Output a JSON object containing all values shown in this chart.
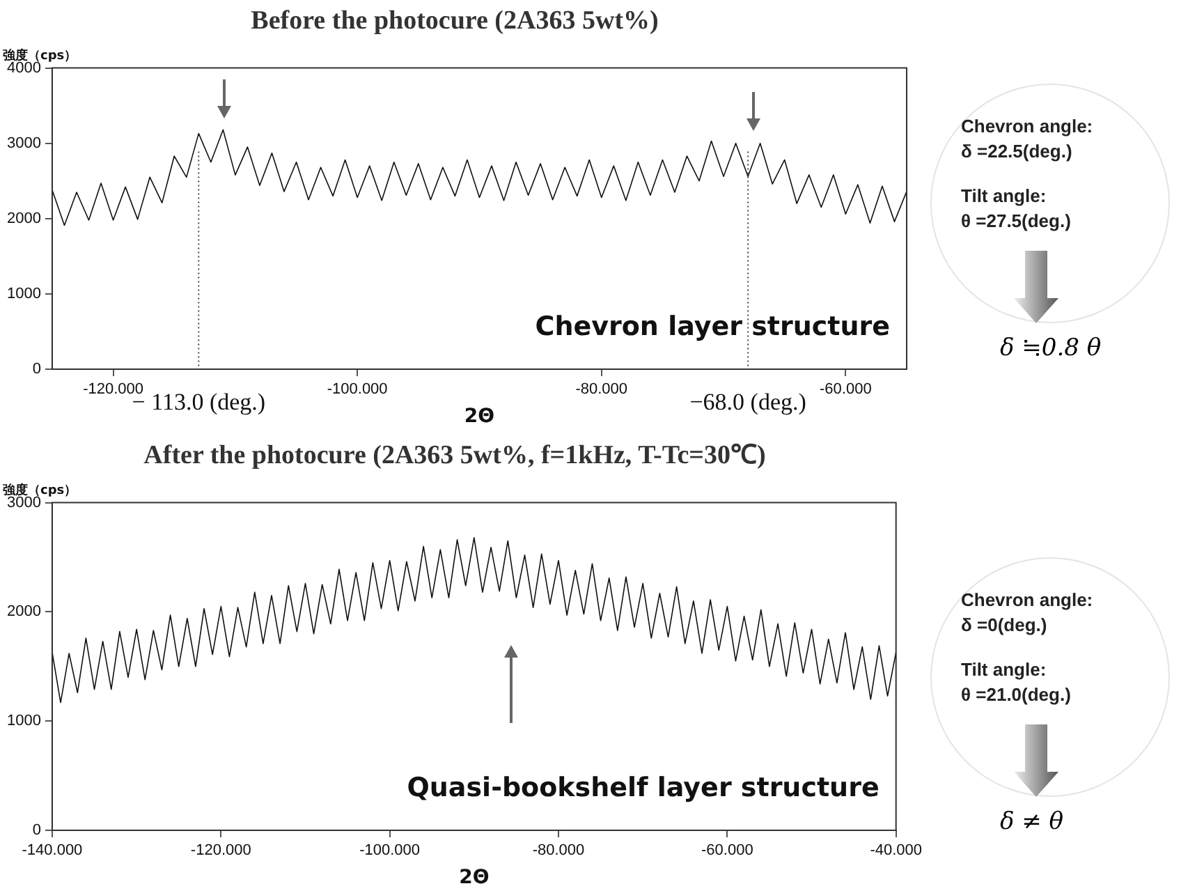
{
  "chart_data": [
    {
      "type": "line",
      "title": "Before the photocure (2A363 5wt%)",
      "xlabel": "2Θ",
      "ylabel": "強度（cps）",
      "x": [
        -125,
        -124,
        -123,
        -122,
        -121,
        -120,
        -119,
        -118,
        -117,
        -116,
        -115,
        -114,
        -113,
        -112,
        -111,
        -110,
        -109,
        -108,
        -107,
        -106,
        -105,
        -104,
        -103,
        -102,
        -101,
        -100,
        -99,
        -98,
        -97,
        -96,
        -95,
        -94,
        -93,
        -92,
        -91,
        -90,
        -89,
        -88,
        -87,
        -86,
        -85,
        -84,
        -83,
        -82,
        -81,
        -80,
        -79,
        -78,
        -77,
        -76,
        -75,
        -74,
        -73,
        -72,
        -71,
        -70,
        -69,
        -68,
        -67,
        -66,
        -65,
        -64,
        -63,
        -62,
        -61,
        -60,
        -59,
        -58,
        -57,
        -56,
        -55
      ],
      "series": [
        {
          "color": "#111111",
          "values": [
            2380,
            1910,
            2350,
            1980,
            2470,
            1980,
            2420,
            1990,
            2550,
            2210,
            2830,
            2550,
            3130,
            2750,
            3180,
            2580,
            2950,
            2440,
            2870,
            2360,
            2750,
            2250,
            2680,
            2300,
            2780,
            2280,
            2700,
            2240,
            2750,
            2310,
            2730,
            2250,
            2680,
            2300,
            2780,
            2280,
            2700,
            2240,
            2750,
            2310,
            2730,
            2250,
            2680,
            2300,
            2780,
            2280,
            2700,
            2240,
            2750,
            2310,
            2780,
            2350,
            2830,
            2500,
            3030,
            2560,
            3000,
            2560,
            3000,
            2460,
            2780,
            2200,
            2580,
            2150,
            2580,
            2060,
            2450,
            1940,
            2430,
            1960,
            2360
          ]
        }
      ],
      "xlim": [
        -125,
        -55
      ],
      "xticks": [
        {
          "value": -120,
          "label": "-120.000"
        },
        {
          "value": -100,
          "label": "-100.000"
        },
        {
          "value": -80,
          "label": "-80.000"
        },
        {
          "value": -60,
          "label": "-60.000"
        }
      ],
      "ylim": [
        0,
        4000
      ],
      "yticks": [
        0,
        1000,
        2000,
        3000,
        4000
      ],
      "ref_lines": [
        {
          "axis": "x",
          "value": -113,
          "label": "− 113.0 (deg.)",
          "line_style": "dotted"
        },
        {
          "axis": "x",
          "value": -68,
          "label": "−68.0 (deg.)",
          "line_style": "dotted"
        }
      ],
      "annotations": [
        "Chevron layer structure",
        "Chevron angle:",
        "δ =22.5(deg.)",
        "Tilt angle:",
        "θ =27.5(deg.)",
        "δ ≒0.8 θ"
      ],
      "grid": false,
      "legend": false,
      "marker": "none",
      "line_style": "solid"
    },
    {
      "type": "line",
      "title": "After the photocure (2A363 5wt%, f=1kHz, T-Tc=30℃)",
      "xlabel": "2Θ",
      "ylabel": "強度（cps）",
      "x": [
        -140,
        -139,
        -138,
        -137,
        -136,
        -135,
        -134,
        -133,
        -132,
        -131,
        -130,
        -129,
        -128,
        -127,
        -126,
        -125,
        -124,
        -123,
        -122,
        -121,
        -120,
        -119,
        -118,
        -117,
        -116,
        -115,
        -114,
        -113,
        -112,
        -111,
        -110,
        -109,
        -108,
        -107,
        -106,
        -105,
        -104,
        -103,
        -102,
        -101,
        -100,
        -99,
        -98,
        -97,
        -96,
        -95,
        -94,
        -93,
        -92,
        -91,
        -90,
        -89,
        -88,
        -87,
        -86,
        -85,
        -84,
        -83,
        -82,
        -81,
        -80,
        -79,
        -78,
        -77,
        -76,
        -75,
        -74,
        -73,
        -72,
        -71,
        -70,
        -69,
        -68,
        -67,
        -66,
        -65,
        -64,
        -63,
        -62,
        -61,
        -60,
        -59,
        -58,
        -57,
        -56,
        -55,
        -54,
        -53,
        -52,
        -51,
        -50,
        -49,
        -48,
        -47,
        -46,
        -45,
        -44,
        -43,
        -42,
        -41,
        -40
      ],
      "series": [
        {
          "color": "#111111",
          "values": [
            1630,
            1170,
            1620,
            1260,
            1760,
            1290,
            1730,
            1290,
            1820,
            1400,
            1840,
            1380,
            1830,
            1470,
            1970,
            1500,
            1940,
            1500,
            2030,
            1610,
            2050,
            1590,
            2040,
            1680,
            2180,
            1710,
            2150,
            1710,
            2240,
            1820,
            2260,
            1800,
            2250,
            1890,
            2390,
            1920,
            2360,
            1920,
            2450,
            2030,
            2470,
            2010,
            2460,
            2100,
            2600,
            2130,
            2570,
            2130,
            2660,
            2240,
            2680,
            2180,
            2590,
            2190,
            2650,
            2130,
            2520,
            2040,
            2530,
            2070,
            2470,
            1970,
            2380,
            1980,
            2440,
            1920,
            2310,
            1830,
            2320,
            1860,
            2260,
            1760,
            2170,
            1770,
            2230,
            1710,
            2100,
            1620,
            2110,
            1650,
            2050,
            1550,
            1960,
            1560,
            2020,
            1500,
            1890,
            1410,
            1900,
            1440,
            1840,
            1340,
            1750,
            1350,
            1810,
            1290,
            1680,
            1200,
            1690,
            1230,
            1630
          ]
        }
      ],
      "xlim": [
        -140,
        -40
      ],
      "xticks": [
        {
          "value": -140,
          "label": "-140.000"
        },
        {
          "value": -120,
          "label": "-120.000"
        },
        {
          "value": -100,
          "label": "-100.000"
        },
        {
          "value": -80,
          "label": "-80.000"
        },
        {
          "value": -60,
          "label": "-60.000"
        },
        {
          "value": -40,
          "label": "-40.000"
        }
      ],
      "ylim": [
        0,
        3000
      ],
      "yticks": [
        0,
        1000,
        2000,
        3000
      ],
      "annotations": [
        "Quasi-bookshelf layer structure",
        "Chevron angle:",
        "δ =0(deg.)",
        "Tilt angle:",
        "θ =21.0(deg.)",
        "δ ≠ θ"
      ],
      "grid": false,
      "legend": false,
      "marker": "none",
      "line_style": "solid"
    }
  ]
}
